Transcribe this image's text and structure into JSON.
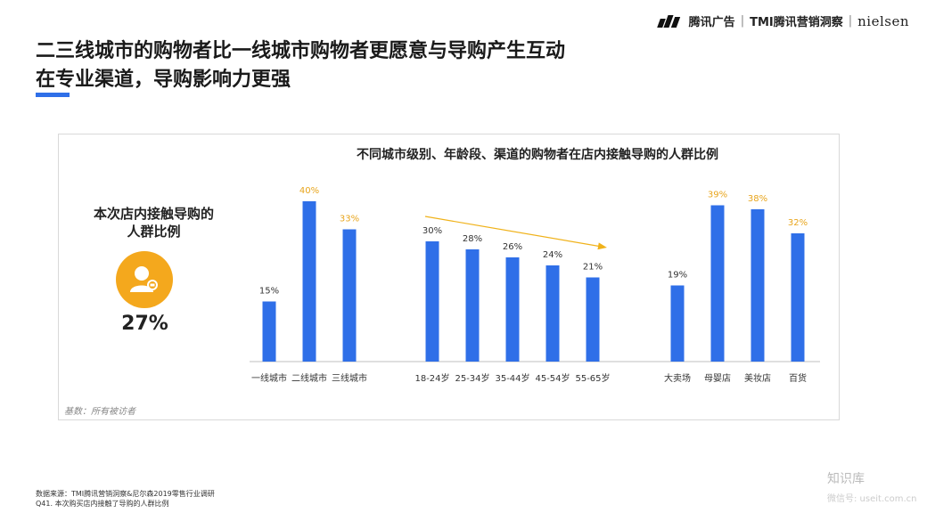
{
  "brand": {
    "tencent": "腾讯广告",
    "tmi": "TMI腾讯营销洞察",
    "nielsen": "nielsen"
  },
  "title": {
    "line1": "二三线城市的购物者比一线城市购物者更愿意与导购产生互动",
    "line2": "在专业渠道，导购影响力更强"
  },
  "side": {
    "label_line1": "本次店内接触导购的",
    "label_line2": "人群比例",
    "value": "27%",
    "icon": "person-cart-icon"
  },
  "basis": "基数：所有被访者",
  "source": {
    "line1": "数据来源：TMI腾讯营销洞察&尼尔森2019零售行业调研",
    "line2": "Q41. 本次购买店内接触了导购的人群比例"
  },
  "watermark": {
    "line1": "知识库",
    "line2": "微信号: useit.com.cn"
  },
  "colors": {
    "bar": "#2f6fe8",
    "highlight_label": "#e8a51c",
    "normal_label": "#333333",
    "trend_arrow": "#f0b21a",
    "accent": "#2f6fe8"
  },
  "chart_data": {
    "type": "bar",
    "title": "不同城市级别、年龄段、渠道的购物者在店内接触导购的人群比例",
    "ylim": [
      0,
      45
    ],
    "groups": [
      {
        "name": "城市级别",
        "categories": [
          "一线城市",
          "二线城市",
          "三线城市"
        ],
        "values": [
          15,
          40,
          33
        ],
        "highlight": [
          false,
          true,
          true
        ]
      },
      {
        "name": "年龄段",
        "categories": [
          "18-24岁",
          "25-34岁",
          "35-44岁",
          "45-54岁",
          "55-65岁"
        ],
        "values": [
          30,
          28,
          26,
          24,
          21
        ],
        "highlight": [
          false,
          false,
          false,
          false,
          false
        ],
        "trend_arrow": "down"
      },
      {
        "name": "渠道",
        "categories": [
          "大卖场",
          "母婴店",
          "美妆店",
          "百货"
        ],
        "values": [
          19,
          39,
          38,
          32
        ],
        "highlight": [
          false,
          true,
          true,
          true
        ]
      }
    ],
    "value_suffix": "%"
  }
}
